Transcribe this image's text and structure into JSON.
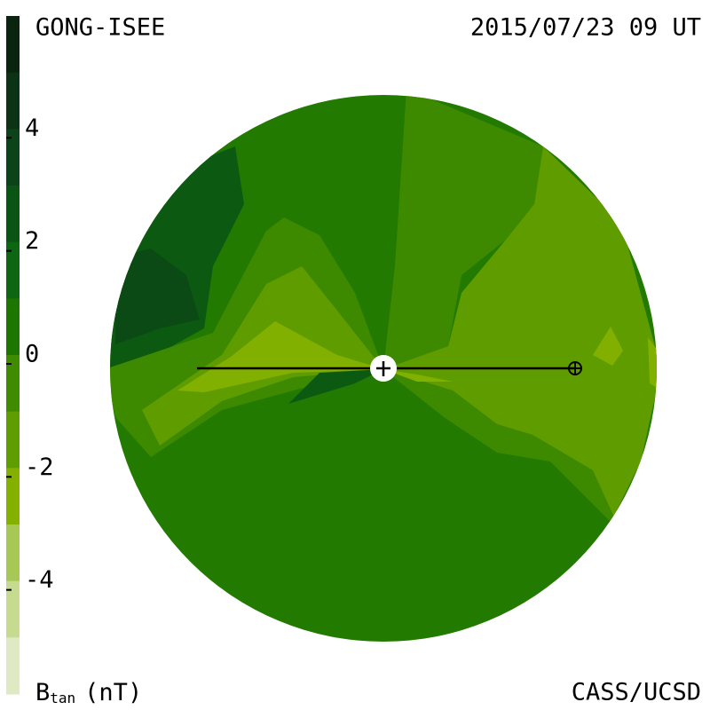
{
  "header": {
    "source": "GONG-ISEE",
    "timestamp": "2015/07/23 09 UT"
  },
  "footer": {
    "quantity": "B",
    "subscript": "tan",
    "unit": "(nT)",
    "credit": "CASS/UCSD"
  },
  "colorbar": {
    "range": [
      -6,
      6
    ],
    "ticks": [
      4,
      2,
      0,
      -2,
      -4
    ],
    "colors": [
      "#0a2410",
      "#0c3414",
      "#0b4418",
      "#0a5414",
      "#0c6612",
      "#1c7600",
      "#3f8c00",
      "#5f9e00",
      "#84b000",
      "#a8c855",
      "#c6db90",
      "#dfeac4"
    ]
  }
}
